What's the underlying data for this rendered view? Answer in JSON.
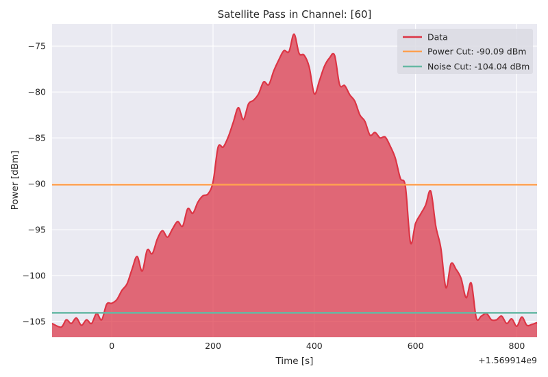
{
  "chart_data": {
    "type": "area",
    "title": "Satellite Pass in Channel: [60]",
    "xlabel": "Time [s]",
    "ylabel": "Power [dBm]",
    "x_offset_label": "+1.569914e9",
    "xlim": [
      -118,
      840
    ],
    "ylim": [
      -106.7,
      -72.6
    ],
    "x_ticks": [
      0,
      200,
      400,
      600,
      800
    ],
    "x_tick_labels": [
      "0",
      "200",
      "400",
      "600",
      "800"
    ],
    "y_ticks": [
      -75,
      -80,
      -85,
      -90,
      -95,
      -100,
      -105
    ],
    "y_tick_labels": [
      "−75",
      "−80",
      "−85",
      "−90",
      "−95",
      "−100",
      "−105"
    ],
    "grid": true,
    "legend_position": "top-right",
    "series": [
      {
        "name": "Data",
        "color": "#dc3545",
        "x": [
          -118,
          -100,
          -90,
          -80,
          -70,
          -60,
          -50,
          -40,
          -30,
          -20,
          -10,
          0,
          10,
          20,
          30,
          40,
          50,
          60,
          70,
          80,
          90,
          100,
          110,
          120,
          130,
          140,
          150,
          160,
          170,
          180,
          190,
          200,
          210,
          220,
          230,
          240,
          250,
          260,
          270,
          280,
          290,
          300,
          310,
          320,
          330,
          340,
          350,
          360,
          370,
          380,
          390,
          400,
          410,
          420,
          430,
          440,
          450,
          460,
          470,
          480,
          490,
          500,
          510,
          520,
          530,
          540,
          550,
          560,
          570,
          580,
          590,
          600,
          610,
          620,
          630,
          640,
          650,
          660,
          670,
          680,
          690,
          700,
          710,
          720,
          730,
          740,
          750,
          760,
          770,
          780,
          790,
          800,
          810,
          820,
          830,
          840
        ],
        "y": [
          -105.2,
          -105.6,
          -104.8,
          -105.2,
          -104.6,
          -105.4,
          -104.8,
          -105.2,
          -104.1,
          -104.8,
          -103.1,
          -103.0,
          -102.6,
          -101.6,
          -100.9,
          -99.3,
          -97.9,
          -99.5,
          -97.2,
          -97.6,
          -96.0,
          -95.1,
          -95.8,
          -94.9,
          -94.1,
          -94.6,
          -92.7,
          -93.2,
          -92.0,
          -91.3,
          -91.1,
          -89.8,
          -86.0,
          -86.0,
          -84.9,
          -83.3,
          -81.7,
          -83.0,
          -81.3,
          -80.9,
          -80.2,
          -78.9,
          -79.2,
          -77.7,
          -76.5,
          -75.5,
          -75.6,
          -73.7,
          -75.8,
          -76.0,
          -77.3,
          -80.2,
          -78.8,
          -77.2,
          -76.3,
          -76.0,
          -79.2,
          -79.3,
          -80.3,
          -81.0,
          -82.5,
          -83.2,
          -84.7,
          -84.4,
          -85.0,
          -84.9,
          -85.9,
          -87.2,
          -89.4,
          -90.3,
          -96.4,
          -94.3,
          -93.3,
          -92.3,
          -90.8,
          -94.6,
          -97.0,
          -101.3,
          -98.7,
          -99.3,
          -100.3,
          -102.4,
          -100.8,
          -104.6,
          -104.4,
          -104.1,
          -104.8,
          -104.8,
          -104.4,
          -105.2,
          -104.7,
          -105.5,
          -104.5,
          -105.4,
          -105.3,
          -105.1
        ]
      },
      {
        "name": "Power Cut: -90.09 dBm",
        "color": "#ffa050",
        "value": -90.09
      },
      {
        "name": "Noise Cut: -104.04 dBm",
        "color": "#66b8a4",
        "value": -104.04
      }
    ]
  }
}
